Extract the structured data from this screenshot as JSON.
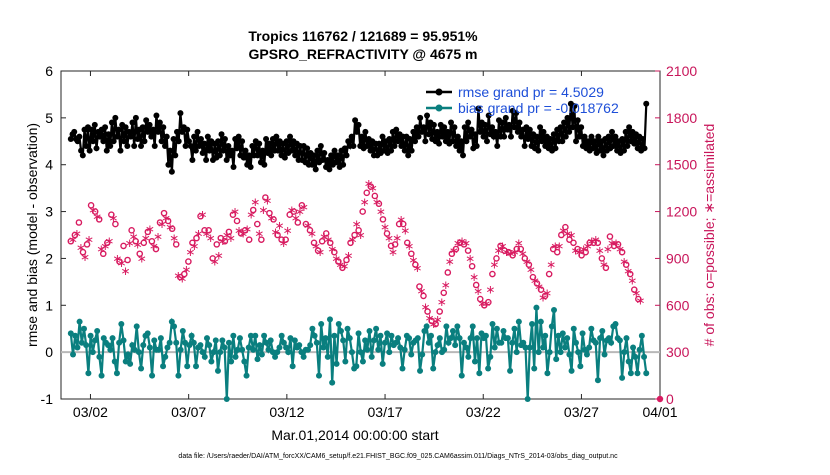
{
  "chart_data": {
    "type": "line",
    "title": "Tropics 116762 / 121689 = 95.951%",
    "subtitle": "GPSRO_REFRACTIVITY @ 4675 m",
    "xlabel": "Mar.01,2014 00:00:00 start",
    "ylabel": "rmse and bias (model - observation)",
    "y2label": "# of obs: o=possible; ∗=assimilated",
    "footnote": "data file: /Users/raeder/DAI/ATM_forcXX/CAM6_setup/f.e21.FHIST_BGC.f09_025.CAM6assim.011/Diags_NTrS_2014-03/obs_diag_output.nc",
    "xlim": [
      0.5,
      31.0
    ],
    "ylim": [
      -1,
      6
    ],
    "y2lim": [
      0,
      2100
    ],
    "x_ticks": [
      {
        "v": 2,
        "label": "03/02"
      },
      {
        "v": 7,
        "label": "03/07"
      },
      {
        "v": 12,
        "label": "03/12"
      },
      {
        "v": 17,
        "label": "03/17"
      },
      {
        "v": 22,
        "label": "03/22"
      },
      {
        "v": 27,
        "label": "03/27"
      },
      {
        "v": 31,
        "label": "04/01"
      }
    ],
    "y_ticks": [
      {
        "v": -1,
        "label": "-1"
      },
      {
        "v": 0,
        "label": "0"
      },
      {
        "v": 1,
        "label": "1"
      },
      {
        "v": 2,
        "label": "2"
      },
      {
        "v": 3,
        "label": "3"
      },
      {
        "v": 4,
        "label": "4"
      },
      {
        "v": 5,
        "label": "5"
      },
      {
        "v": 6,
        "label": "6"
      }
    ],
    "y2_ticks": [
      {
        "v": 0,
        "label": "0"
      },
      {
        "v": 300,
        "label": "300"
      },
      {
        "v": 600,
        "label": "600"
      },
      {
        "v": 900,
        "label": "900"
      },
      {
        "v": 1200,
        "label": "1200"
      },
      {
        "v": 1500,
        "label": "1500"
      },
      {
        "v": 1800,
        "label": "1800"
      },
      {
        "v": 2100,
        "label": "2100"
      }
    ],
    "legend": [
      {
        "name": "rmse grand pr = 4.5029",
        "color": "#000000"
      },
      {
        "name": "bias grand pr = -0.018762",
        "color": "#0a7f7f"
      }
    ],
    "series": [
      {
        "name": "rmse",
        "axis": "left",
        "color": "#000000",
        "values": [
          4.55,
          4.65,
          4.7,
          4.55,
          4.5,
          4.6,
          4.3,
          4.2,
          4.75,
          4.4,
          4.8,
          4.3,
          4.75,
          4.5,
          4.85,
          4.35,
          4.7,
          4.6,
          4.75,
          4.5,
          4.8,
          4.3,
          4.65,
          4.4,
          4.9,
          4.5,
          5.0,
          4.6,
          4.75,
          4.3,
          4.85,
          4.5,
          4.8,
          4.4,
          4.7,
          4.6,
          4.9,
          4.4,
          5.0,
          4.55,
          4.75,
          4.4,
          4.8,
          4.5,
          4.95,
          4.7,
          4.85,
          4.6,
          4.75,
          4.4,
          5.05,
          4.7,
          4.9,
          4.5,
          4.8,
          4.4,
          4.6,
          4.0,
          4.3,
          3.85,
          4.55,
          4.2,
          4.7,
          4.5,
          5.1,
          4.7,
          4.8,
          4.4,
          4.75,
          4.5,
          4.4,
          4.1,
          4.6,
          4.3,
          4.7,
          4.4,
          4.55,
          4.25,
          4.45,
          4.1,
          4.6,
          4.3,
          4.5,
          4.1,
          4.45,
          4.15,
          4.5,
          4.2,
          4.65,
          4.3,
          4.55,
          4.1,
          4.4,
          4.2,
          4.3,
          3.95,
          4.55,
          4.35,
          4.6,
          4.2,
          4.5,
          4.15,
          4.3,
          4.0,
          4.2,
          3.95,
          4.4,
          4.2,
          4.5,
          4.2,
          4.45,
          4.05,
          4.3,
          4.0,
          4.55,
          4.25,
          4.45,
          4.2,
          4.55,
          4.3,
          4.6,
          4.3,
          4.5,
          4.2,
          4.45,
          4.15,
          4.5,
          4.25,
          4.6,
          4.3,
          4.5,
          4.2,
          4.45,
          4.1,
          4.4,
          4.1,
          4.4,
          4.05,
          4.35,
          4.0,
          4.25,
          4.0,
          4.2,
          3.9,
          4.3,
          4.05,
          4.4,
          4.1,
          4.25,
          3.95,
          4.1,
          3.9,
          4.2,
          4.0,
          4.3,
          4.05,
          4.2,
          3.95,
          4.3,
          4.0,
          4.35,
          4.2,
          4.5,
          4.4,
          4.6,
          4.4,
          4.95,
          4.7,
          4.85,
          4.4,
          4.6,
          4.35,
          4.7,
          4.4,
          4.55,
          4.3,
          4.5,
          4.2,
          4.45,
          4.2,
          4.45,
          4.25,
          4.6,
          4.3,
          4.5,
          4.25,
          4.55,
          4.3,
          4.7,
          4.4,
          4.75,
          4.5,
          4.65,
          4.4,
          4.6,
          4.3,
          4.6,
          4.2,
          4.55,
          4.3,
          4.7,
          4.5,
          4.8,
          4.6,
          5.0,
          4.7,
          4.8,
          4.5,
          5.05,
          4.65,
          4.9,
          4.55,
          4.85,
          4.5,
          4.7,
          4.45,
          4.85,
          4.6,
          4.8,
          4.5,
          4.7,
          4.45,
          4.9,
          4.5,
          4.8,
          4.4,
          4.6,
          4.3,
          4.5,
          4.2,
          4.8,
          4.5,
          4.9,
          4.6,
          4.75,
          4.35,
          4.65,
          4.4,
          5.2,
          4.7,
          4.9,
          4.6,
          4.85,
          4.5,
          5.05,
          4.65,
          4.8,
          4.6,
          4.7,
          4.4,
          4.95,
          4.6,
          4.9,
          4.6,
          5.0,
          4.75,
          4.85,
          4.6,
          5.15,
          4.8,
          5.1,
          4.7,
          4.9,
          4.6,
          4.75,
          4.4,
          4.8,
          4.55,
          4.75,
          4.4,
          4.65,
          4.35,
          4.6,
          4.3,
          4.8,
          4.5,
          4.7,
          4.4,
          4.6,
          4.35,
          4.55,
          4.3,
          4.65,
          4.35,
          4.75,
          4.5,
          4.8,
          4.5,
          4.9,
          4.6,
          5.0,
          4.7,
          5.3,
          4.8,
          5.25,
          4.5,
          4.95,
          4.6,
          4.8,
          4.4,
          4.6,
          4.35,
          4.5,
          4.3,
          4.6,
          4.35,
          4.5,
          4.25,
          4.6,
          4.3,
          4.5,
          4.2,
          4.55,
          4.3,
          4.6,
          4.35,
          4.7,
          4.4,
          4.6,
          4.3,
          4.5,
          4.25,
          4.55,
          4.3,
          4.7,
          4.4,
          4.8,
          4.5,
          4.7,
          4.45,
          4.65,
          4.35,
          4.6,
          4.3,
          4.55,
          4.35,
          5.3
        ]
      },
      {
        "name": "bias",
        "axis": "left",
        "color": "#0a7f7f",
        "values": [
          0.4,
          -0.05,
          0.35,
          0.1,
          0.65,
          0.2,
          0.5,
          0.15,
          -0.45,
          0.35,
          0.0,
          0.25,
          0.45,
          -0.1,
          -0.5,
          0.3,
          0.2,
          0.15,
          0.05,
          0.3,
          -0.2,
          -0.45,
          0.2,
          0.6,
          0.25,
          -0.2,
          -0.05,
          -0.25,
          0.15,
          0.05,
          0.55,
          0.0,
          -0.35,
          0.15,
          0.35,
          0.4,
          0.1,
          -0.5,
          0.25,
          0.05,
          0.05,
          0.3,
          -0.3,
          -0.1,
          0.1,
          0.2,
          0.65,
          0.55,
          0.2,
          -0.5,
          0.05,
          0.45,
          0.2,
          -0.3,
          0.15,
          0.35,
          0.2,
          -0.3,
          0.1,
          0.15,
          0.0,
          -0.1,
          0.3,
          0.15,
          -0.2,
          0.0,
          0.25,
          -0.4,
          0.0,
          0.25,
          0.1,
          -1.0,
          0.2,
          -0.2,
          0.35,
          -0.1,
          0.05,
          0.3,
          0.05,
          -0.2,
          -0.5,
          0.1,
          0.35,
          0.05,
          0.35,
          -0.15,
          0.15,
          -0.05,
          0.35,
          0.2,
          0.05,
          0.25,
          0.0,
          -0.1,
          0.0,
          0.1,
          0.35,
          0.2,
          0.1,
          0.0,
          0.3,
          -0.3,
          0.25,
          0.1,
          0.15,
          0.0,
          -0.1,
          0.05,
          0.05,
          0.15,
          0.5,
          0.35,
          0.2,
          -0.5,
          0.6,
          0.1,
          0.3,
          -0.1,
          0.7,
          -0.65,
          0.35,
          -0.25,
          0.6,
          0.45,
          0.25,
          -0.2,
          0.5,
          0.3,
          0.0,
          -0.35,
          -0.3,
          0.4,
          0.0,
          -0.2,
          0.25,
          0.05,
          0.45,
          -0.1,
          0.25,
          0.5,
          0.05,
          0.35,
          -0.25,
          0.2,
          0.4,
          0.0,
          0.35,
          0.15,
          0.2,
          0.3,
          0.1,
          -0.35,
          0.05,
          0.35,
          0.3,
          -0.05,
          0.2,
          0.25,
          0.3,
          -0.4,
          -0.05,
          0.45,
          0.55,
          0.2,
          0.35,
          -0.35,
          0.0,
          0.15,
          0.3,
          0.0,
          0.05,
          0.55,
          0.2,
          0.3,
          0.45,
          0.15,
          0.55,
          0.3,
          -0.5,
          0.2,
          0.1,
          -0.1,
          0.3,
          0.55,
          -0.2,
          0.3,
          -0.45,
          0.4,
          0.3,
          0.35,
          -0.35,
          -0.1,
          0.6,
          0.1,
          0.5,
          0.2,
          0.2,
          0.45,
          0.3,
          0.3,
          -0.4,
          0.2,
          0.5,
          0.0,
          0.65,
          0.15,
          0.2,
          0.1,
          -1.0,
          0.1,
          0.6,
          -0.35,
          0.95,
          0.0,
          0.65,
          0.1,
          0.35,
          -0.45,
          0.0,
          0.55,
          0.9,
          -0.15,
          0.35,
          0.0,
          0.4,
          0.1,
          0.3,
          -0.05,
          -0.4,
          0.5,
          0.2,
          0.0,
          -0.3,
          0.4,
          0.05,
          -0.05,
          0.1,
          0.5,
          0.25,
          0.2,
          -0.6,
          0.3,
          0.45,
          -0.05,
          0.25,
          0.3,
          0.2,
          0.55,
          0.6,
          0.3,
          0.25,
          -0.55,
          0.0,
          0.3,
          -0.2,
          -0.45,
          0.1,
          -0.1,
          -0.45,
          0.05,
          0.35,
          -0.1,
          -0.45
        ]
      }
    ],
    "obs_possible": [
      1010,
      1020,
      1050,
      1060,
      1130,
      970,
      940,
      910,
      990,
      1020,
      1240,
      1210,
      1200,
      1170,
      1150,
      960,
      930,
      980,
      1000,
      1010,
      1180,
      1160,
      1120,
      900,
      880,
      870,
      980,
      820,
      890,
      1000,
      1080,
      1040,
      1010,
      990,
      930,
      900,
      1000,
      1030,
      1070,
      1090,
      1010,
      980,
      960,
      1040,
      1130,
      1120,
      1190,
      1160,
      1140,
      1100,
      1090,
      1030,
      990,
      790,
      780,
      770,
      800,
      830,
      880,
      940,
      1000,
      980,
      1030,
      1060,
      1170,
      1180,
      1080,
      1060,
      1080,
      1030,
      900,
      880,
      990,
      920,
      1030,
      1010,
      1010,
      1050,
      1070,
      1030,
      1180,
      1200,
      1140,
      1080,
      1060,
      1060,
      1080,
      1090,
      1020,
      1180,
      1210,
      1260,
      1120,
      1060,
      1020,
      1210,
      1290,
      1270,
      1190,
      1160,
      1150,
      1070,
      1050,
      1110,
      1020,
      1000,
      1020,
      1080,
      1180,
      1210,
      1200,
      1160,
      1130,
      1200,
      1240,
      1230,
      1120,
      1110,
      1080,
      1060,
      1000,
      980,
      950,
      940,
      1010,
      1040,
      1060,
      1020,
      1000,
      960,
      940,
      900,
      880,
      860,
      840,
      850,
      890,
      920,
      1000,
      1020,
      1050,
      1120,
      1080,
      1050,
      1200,
      1260,
      1320,
      1380,
      1360,
      1350,
      1300,
      1260,
      1250,
      1200,
      1150,
      1100,
      1060,
      1030,
      980,
      940,
      990,
      1030,
      1120,
      1150,
      1120,
      1080,
      1000,
      980,
      930,
      890,
      860,
      840,
      720,
      690,
      660,
      590,
      560,
      520,
      500,
      480,
      480,
      510,
      560,
      620,
      680,
      730,
      810,
      880,
      930,
      950,
      960,
      1000,
      1000,
      1010,
      990,
      1000,
      950,
      900,
      850,
      780,
      730,
      690,
      640,
      610,
      600,
      610,
      620,
      700,
      800,
      860,
      900,
      950,
      980,
      980,
      950,
      940,
      940,
      930,
      920,
      940,
      960,
      1000,
      960,
      930,
      900,
      880,
      860,
      830,
      780,
      760,
      740,
      720,
      700,
      650,
      660,
      680,
      800,
      860,
      960,
      980,
      940,
      980,
      1050,
      1080,
      1100,
      1060,
      1020,
      1050,
      1000,
      950,
      960,
      940,
      920,
      960,
      940,
      980,
      1000,
      1010,
      1000,
      1020,
      1000,
      950,
      900,
      860,
      840,
      960,
      1040,
      1000,
      980,
      1000,
      990,
      960,
      940,
      880,
      860,
      820,
      800,
      760,
      700,
      680,
      640,
      630
    ]
  }
}
